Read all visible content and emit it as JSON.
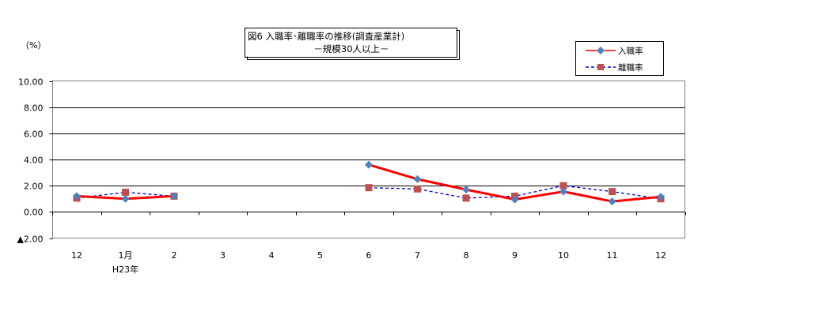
{
  "chart_data": {
    "type": "line",
    "title": "図6 入職率･離職率の推移(調査産業計)",
    "subtitle": "－規模30人以上－",
    "ylabel": "（%）",
    "ylim": [
      -2,
      10
    ],
    "yticks": [
      10,
      8,
      6,
      4,
      2,
      0,
      -2
    ],
    "ytick_labels": [
      "10.00",
      "8.00",
      "6.00",
      "4.00",
      "2.00",
      "0.00",
      "▲2.00"
    ],
    "categories": [
      "12",
      "1月",
      "2",
      "3",
      "4",
      "5",
      "6",
      "7",
      "8",
      "9",
      "10",
      "11",
      "12"
    ],
    "category_sublabels": [
      "",
      "H23年",
      "",
      "",
      "",
      "",
      "",
      "",
      "",
      "",
      "",
      "",
      ""
    ],
    "grid": true,
    "legend_position": "top-right",
    "series": [
      {
        "name": "入職率",
        "color": "#ff0000",
        "marker": "diamond",
        "marker_color": "#4f81bd",
        "line_style": "solid",
        "values": [
          1.2,
          1.0,
          1.2,
          null,
          null,
          null,
          3.6,
          2.5,
          1.7,
          0.95,
          1.55,
          0.8,
          1.15
        ]
      },
      {
        "name": "離職率",
        "color": "#0000cc",
        "marker": "square",
        "marker_color": "#c0504d",
        "line_style": "dashed",
        "values": [
          1.05,
          1.5,
          1.2,
          null,
          null,
          null,
          1.85,
          1.75,
          1.05,
          1.2,
          2.0,
          1.55,
          1.0
        ]
      }
    ]
  }
}
